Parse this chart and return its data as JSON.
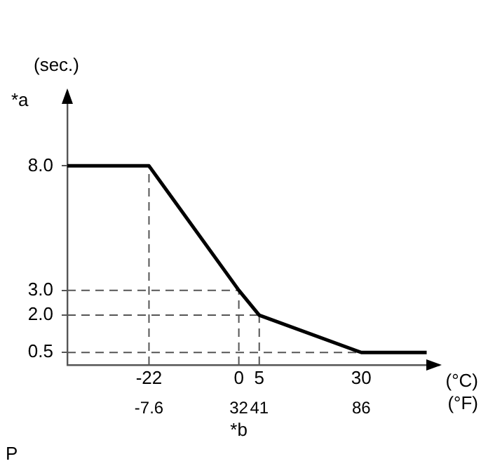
{
  "chart_data": {
    "type": "line",
    "ylabel": "(sec.)",
    "xlabel": "*b",
    "annotations": [
      "*a",
      "(°C)",
      "(°F)",
      "P"
    ],
    "x": [
      -42,
      -22,
      0,
      5,
      30,
      46
    ],
    "series": [
      {
        "color": "#000000",
        "values": [
          8.0,
          8.0,
          3.0,
          2.0,
          0.5,
          0.5
        ]
      }
    ],
    "xlim": [
      -42,
      49
    ],
    "xticks": [
      -22,
      0,
      5,
      30
    ],
    "x2lim": [
      -43.6,
      120.2
    ],
    "x2ticks": [
      -7.6,
      32,
      41,
      86
    ],
    "ylim": [
      0,
      11
    ],
    "yticks": [
      {
        "value": 0.5,
        "label": "0.5"
      },
      {
        "value": 2,
        "label": "2.0"
      },
      {
        "value": 3,
        "label": "3.0"
      },
      {
        "value": 8,
        "label": "8.0"
      }
    ],
    "ref_lines": [
      {
        "axis": "y",
        "value": 3,
        "color": "#555555",
        "line_style": "dashed"
      },
      {
        "axis": "y",
        "value": 2,
        "color": "#555555",
        "line_style": "dashed"
      },
      {
        "axis": "y",
        "value": 0.5,
        "color": "#555555",
        "line_style": "dashed"
      },
      {
        "axis": "x",
        "value": -22,
        "color": "#555555",
        "line_style": "dashed"
      },
      {
        "axis": "x",
        "value": 0,
        "color": "#555555",
        "line_style": "dashed"
      },
      {
        "axis": "x",
        "value": 5,
        "color": "#555555",
        "line_style": "dashed"
      }
    ],
    "grid": false,
    "legend": false,
    "marker": "none",
    "line_style": "solid"
  }
}
